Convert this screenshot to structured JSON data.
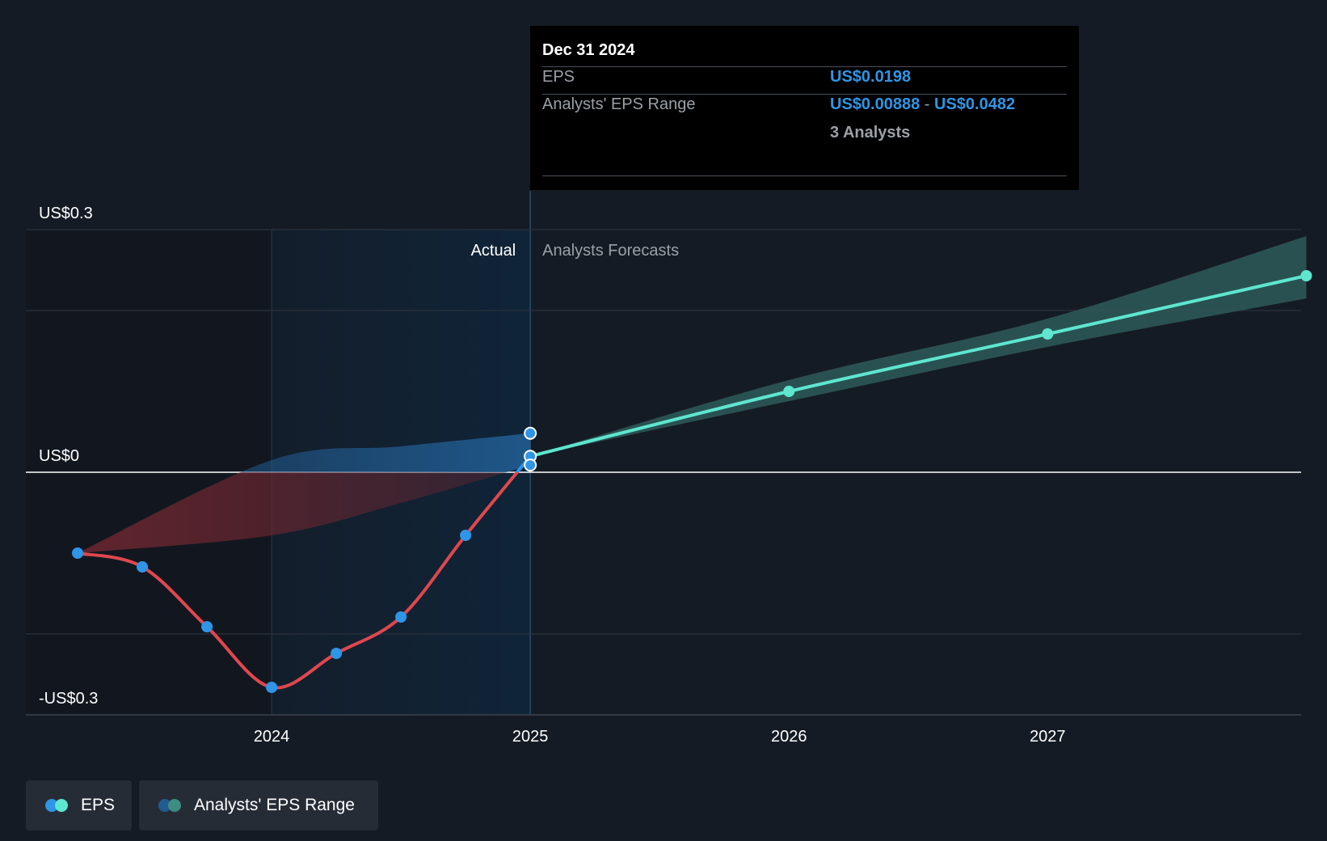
{
  "tooltip": {
    "date": "Dec 31 2024",
    "eps_label": "EPS",
    "eps_value": "US$0.0198",
    "range_label": "Analysts' EPS Range",
    "range_low": "US$0.00888",
    "range_sep": "-",
    "range_high": "US$0.0482",
    "analysts": "3 Analysts"
  },
  "legend": {
    "eps": "EPS",
    "range": "Analysts' EPS Range"
  },
  "colors": {
    "background": "#151b24",
    "actual_shade": "#102438",
    "eps_negative": "#e0474f",
    "eps_point": "#2f95e6",
    "forecast_line": "#5ee6cf",
    "forecast_band": "#2e5b5a",
    "range_band_positive": "#215c91",
    "range_band_negative": "#6a2630"
  },
  "chart_data": {
    "type": "line",
    "y_axis_labels": [
      "US$0.3",
      "US$0",
      "-US$0.3"
    ],
    "ylim": [
      -0.3,
      0.3
    ],
    "x_tick_labels": [
      "2024",
      "2025",
      "2026",
      "2027"
    ],
    "x_ticks": [
      2024,
      2025,
      2026,
      2027
    ],
    "xlim": [
      2023.05,
      2027.98
    ],
    "grid": true,
    "legend_position": "bottom-left",
    "region_labels": {
      "actual": "Actual",
      "forecast": "Analysts Forecasts"
    },
    "highlight_start": 2024.0,
    "divider": 2025.0,
    "series": [
      {
        "name": "EPS",
        "kind": "actual",
        "points": [
          [
            2023.25,
            -0.1
          ],
          [
            2023.5,
            -0.117
          ],
          [
            2023.75,
            -0.191
          ],
          [
            2024.0,
            -0.266
          ],
          [
            2024.25,
            -0.224
          ],
          [
            2024.5,
            -0.179
          ],
          [
            2024.75,
            -0.078
          ],
          [
            2025.0,
            0.0198
          ]
        ]
      },
      {
        "name": "EPS",
        "kind": "forecast",
        "points": [
          [
            2025.0,
            0.0198
          ],
          [
            2026.0,
            0.1
          ],
          [
            2027.0,
            0.171
          ],
          [
            2028.0,
            0.243
          ]
        ]
      },
      {
        "name": "Analysts' EPS Range",
        "kind": "range",
        "low": [
          [
            2023.25,
            -0.1
          ],
          [
            2024.0,
            -0.078
          ],
          [
            2024.5,
            -0.038
          ],
          [
            2025.0,
            0.00888
          ]
        ],
        "high": [
          [
            2023.25,
            -0.1
          ],
          [
            2024.0,
            0.015
          ],
          [
            2024.5,
            0.032
          ],
          [
            2025.0,
            0.0482
          ]
        ]
      },
      {
        "name": "Analysts' EPS Range",
        "kind": "forecast_range",
        "low": [
          [
            2025.0,
            0.0198
          ],
          [
            2026.0,
            0.088
          ],
          [
            2027.0,
            0.155
          ],
          [
            2028.0,
            0.215
          ]
        ],
        "high": [
          [
            2025.0,
            0.0198
          ],
          [
            2026.0,
            0.114
          ],
          [
            2027.0,
            0.19
          ],
          [
            2028.0,
            0.292
          ]
        ]
      }
    ]
  }
}
